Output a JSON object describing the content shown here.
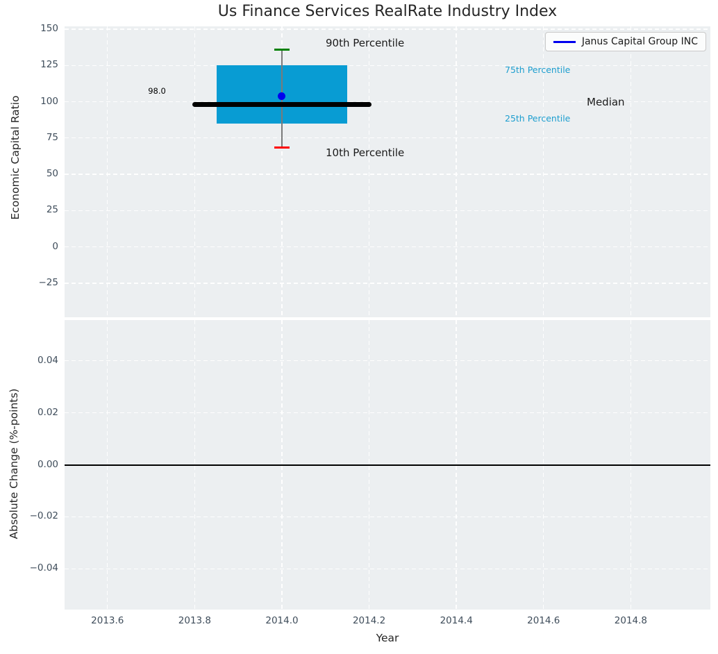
{
  "colors": {
    "axes_background": "#eceff1",
    "grid": "#ffffff",
    "box_fill": "#089cd3",
    "median_line": "#000000",
    "company_dot": "#0000ee",
    "p90_cap": "#008000",
    "p10_cap": "#ff0000",
    "whisker": "#7a7a7a",
    "tick_label": "#3e4c5a",
    "cyan_annotation": "#1d9ecf",
    "zero_line": "#000000"
  },
  "legend": {
    "label": "Janus Capital Group INC",
    "line_color": "#0000ee",
    "position": "upper right"
  },
  "chart_data": [
    {
      "type": "box",
      "title": "Us Finance Services RealRate Industry Index",
      "xlabel": "Year",
      "ylabel": "Economic Capital Ratio",
      "xlim": [
        2013.5016,
        2014.9825
      ],
      "ylim": [
        -48.5,
        151.9
      ],
      "xticks": [
        2013.6,
        2013.8,
        2014.0,
        2014.2,
        2014.4,
        2014.6,
        2014.8
      ],
      "xtick_labels": [
        "2013.6",
        "2013.8",
        "2014.0",
        "2014.2",
        "2014.4",
        "2014.6",
        "2014.8"
      ],
      "yticks": [
        150,
        125,
        100,
        75,
        50,
        25,
        0,
        -25
      ],
      "ytick_labels": [
        "150",
        "125",
        "100",
        "75",
        "50",
        "25",
        "0",
        "−25"
      ],
      "grid": true,
      "legend_entries": [
        "Janus Capital Group INC"
      ],
      "box": {
        "x_center": 2014.0,
        "box_x_range": [
          2013.85,
          2014.15
        ],
        "median_x_range": [
          2013.8,
          2014.2
        ],
        "p10": 68.5,
        "p25": 85,
        "median": 98.0,
        "p75": 125,
        "p90": 136,
        "median_label": "98.0"
      },
      "company_point": {
        "name": "Janus Capital Group INC",
        "x": 2014.0,
        "y": 104
      },
      "annotations": [
        {
          "text": "90th Percentile",
          "refers_to": "p90",
          "color": "#1a1a1a"
        },
        {
          "text": "10th Percentile",
          "refers_to": "p10",
          "color": "#1a1a1a"
        },
        {
          "text": "75th Percentile",
          "refers_to": "p75",
          "color": "#1d9ecf"
        },
        {
          "text": "25th Percentile",
          "refers_to": "p25",
          "color": "#1d9ecf"
        },
        {
          "text": "Median",
          "refers_to": "median",
          "color": "#1a1a1a"
        },
        {
          "text": "98.0",
          "refers_to": "median_value",
          "color": "#000000"
        }
      ]
    },
    {
      "type": "line",
      "xlabel": "Year",
      "ylabel": "Absolute Change (%-points)",
      "xlim": [
        2013.5016,
        2014.9825
      ],
      "ylim": [
        -0.0557,
        0.0557
      ],
      "xticks": [
        2013.6,
        2013.8,
        2014.0,
        2014.2,
        2014.4,
        2014.6,
        2014.8
      ],
      "xtick_labels": [
        "2013.6",
        "2013.8",
        "2014.0",
        "2014.2",
        "2014.4",
        "2014.6",
        "2014.8"
      ],
      "yticks": [
        0.04,
        0.02,
        0.0,
        -0.02,
        -0.04
      ],
      "ytick_labels": [
        "0.04",
        "0.02",
        "0.00",
        "−0.02",
        "−0.04"
      ],
      "grid": true,
      "series": [
        {
          "name": "zero-reference-line",
          "constant_y": 0.0
        }
      ]
    }
  ]
}
